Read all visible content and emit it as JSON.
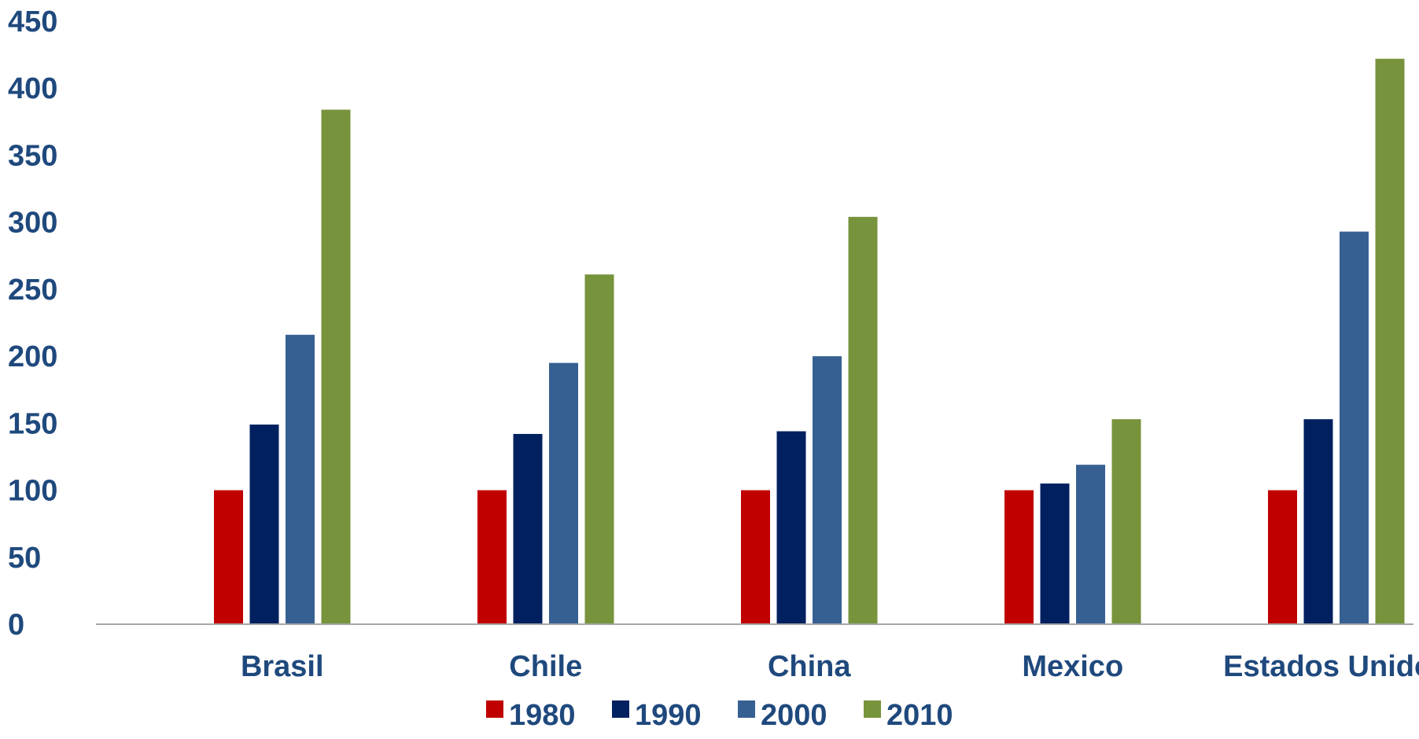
{
  "chart_data": {
    "type": "bar",
    "title": "",
    "xlabel": "",
    "ylabel": "",
    "categories": [
      "Brasil",
      "Chile",
      "China",
      "Mexico",
      "Estados Unidos"
    ],
    "ylim": [
      0,
      450
    ],
    "yticks": [
      0,
      50,
      100,
      150,
      200,
      250,
      300,
      350,
      400,
      450
    ],
    "grid": false,
    "legend_position": "bottom",
    "series": [
      {
        "name": "1980",
        "color": "#C00000",
        "values": [
          100,
          100,
          100,
          100,
          100
        ]
      },
      {
        "name": "1990",
        "color": "#002060",
        "values": [
          149,
          142,
          144,
          105,
          153
        ]
      },
      {
        "name": "2000",
        "color": "#376092",
        "values": [
          216,
          195,
          200,
          119,
          293
        ]
      },
      {
        "name": "2010",
        "color": "#77933C",
        "values": [
          384,
          261,
          304,
          153,
          422
        ]
      }
    ]
  }
}
